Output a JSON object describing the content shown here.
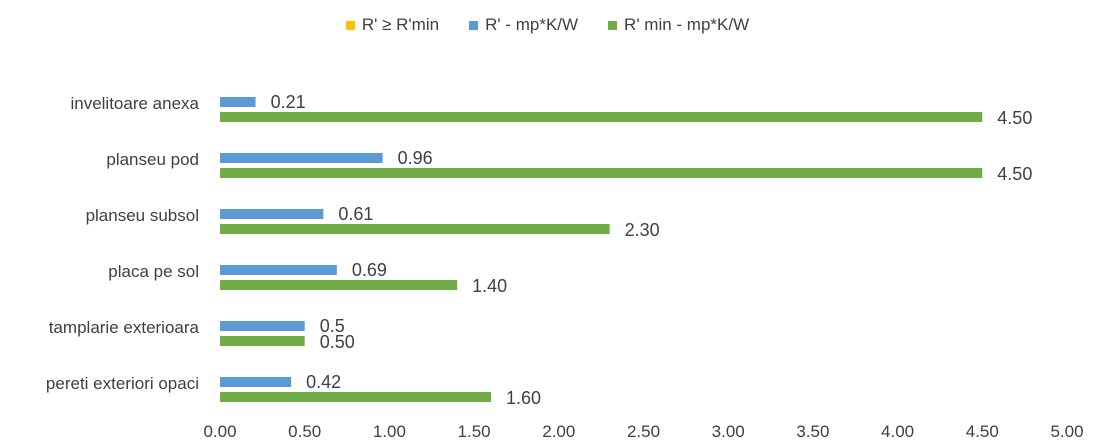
{
  "chart_data": {
    "type": "bar",
    "orientation": "horizontal",
    "title": "",
    "xlabel": "",
    "ylabel": "",
    "categories": [
      "invelitoare anexa",
      "planseu pod",
      "planseu subsol",
      "placa pe sol",
      "tamplarie exterioara",
      "pereti exteriori opaci"
    ],
    "series": [
      {
        "name": "R' ≥ R'min",
        "color": "#FFC000",
        "values": [
          null,
          null,
          null,
          null,
          null,
          null
        ],
        "labels": [
          "",
          "",
          "",
          "",
          "",
          ""
        ]
      },
      {
        "name": "R' - mp*K/W",
        "color": "#5B9BD5",
        "values": [
          0.21,
          0.96,
          0.61,
          0.69,
          0.5,
          0.42
        ],
        "labels": [
          "0.21",
          "0.96",
          "0.61",
          "0.69",
          "0.5",
          "0.42"
        ]
      },
      {
        "name": "R' min - mp*K/W",
        "color": "#70AD47",
        "values": [
          4.5,
          4.5,
          2.3,
          1.4,
          0.5,
          1.6
        ],
        "labels": [
          "4.50",
          "4.50",
          "2.30",
          "1.40",
          "0.50",
          "1.60"
        ]
      }
    ],
    "xlim": [
      0,
      5
    ],
    "xticks": [
      "0.00",
      "0.50",
      "1.00",
      "1.50",
      "2.00",
      "2.50",
      "3.00",
      "3.50",
      "4.00",
      "4.50",
      "5.00"
    ],
    "grid": false,
    "legend_position": "top"
  }
}
